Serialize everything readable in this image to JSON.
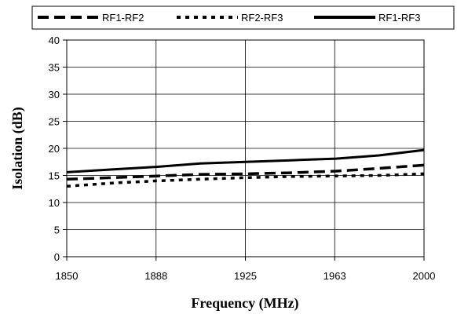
{
  "chart_data": {
    "type": "line",
    "title": "",
    "xlabel": "Frequency (MHz)",
    "ylabel": "Isolation (dB)",
    "x_tick_labels": [
      "1850",
      "1888",
      "1925",
      "1963",
      "2000"
    ],
    "y_tick_labels": [
      "0",
      "5",
      "10",
      "15",
      "20",
      "25",
      "30",
      "35",
      "40"
    ],
    "xlim": [
      1850,
      2000
    ],
    "ylim": [
      0,
      40
    ],
    "grid": true,
    "legend_position": "top",
    "series": [
      {
        "name": "RF1-RF2",
        "line_style": "long-dash",
        "color": "#000000",
        "x": [
          1850,
          1869,
          1888,
          1906,
          1925,
          1944,
          1963,
          1981,
          2000
        ],
        "y": [
          14.3,
          14.6,
          14.9,
          15.2,
          15.3,
          15.5,
          15.8,
          16.3,
          16.9
        ]
      },
      {
        "name": "RF2-RF3",
        "line_style": "short-dash",
        "color": "#000000",
        "x": [
          1850,
          1869,
          1888,
          1906,
          1925,
          1944,
          1963,
          1981,
          2000
        ],
        "y": [
          13.0,
          13.6,
          14.0,
          14.3,
          14.6,
          14.8,
          14.9,
          15.0,
          15.3
        ]
      },
      {
        "name": "RF1-RF3",
        "line_style": "solid",
        "color": "#000000",
        "x": [
          1850,
          1869,
          1888,
          1906,
          1925,
          1944,
          1963,
          1981,
          2000
        ],
        "y": [
          15.6,
          16.1,
          16.6,
          17.2,
          17.5,
          17.8,
          18.1,
          18.7,
          19.7
        ]
      }
    ]
  }
}
